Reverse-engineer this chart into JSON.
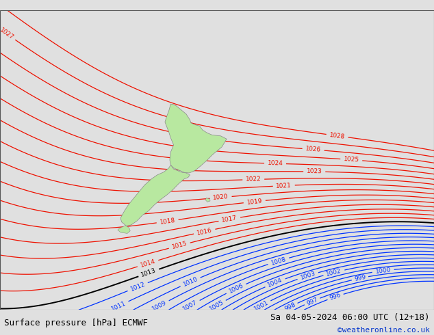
{
  "title_left": "Surface pressure [hPa] ECMWF",
  "title_right": "Sa 04-05-2024 06:00 UTC (12+18)",
  "credit": "©weatheronline.co.uk",
  "bg_color": "#e0e0e0",
  "land_color": "#b8e8a0",
  "coast_color": "#888888",
  "contour_red_color": "#ee1100",
  "contour_black_color": "#000000",
  "contour_blue_color": "#0033ff",
  "label_fontsize": 6.5,
  "title_fontsize": 9,
  "credit_fontsize": 8,
  "credit_color": "#0033cc",
  "red_levels": [
    1014,
    1015,
    1016,
    1017,
    1018,
    1019,
    1020,
    1021,
    1022,
    1023,
    1024,
    1025,
    1026,
    1027,
    1028
  ],
  "black_levels": [
    1013
  ],
  "blue_levels": [
    996,
    997,
    998,
    999,
    1000,
    1001,
    1002,
    1003,
    1004,
    1005,
    1006,
    1007,
    1008,
    1009,
    1010,
    1011,
    1012
  ],
  "lon_min": 155,
  "lon_max": 200,
  "lat_min": -55,
  "lat_max": -25,
  "figw": 6.34,
  "figh": 4.9,
  "dpi": 100
}
